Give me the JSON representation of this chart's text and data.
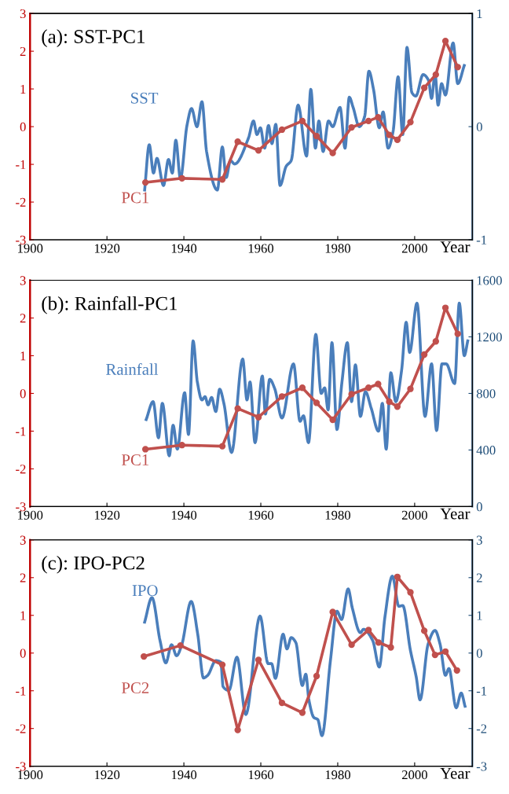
{
  "chart_data": [
    {
      "type": "line",
      "title": "(a): SST-PC1",
      "xlabel": "Year",
      "xlim": [
        1900,
        2015
      ],
      "xticks": [
        1900,
        1920,
        1940,
        1960,
        1980,
        2000
      ],
      "ylim": [
        -3,
        3
      ],
      "yticks": [
        -3,
        -2,
        -1,
        0,
        1,
        2,
        3
      ],
      "y2lim": [
        -1,
        1
      ],
      "y2ticks": [
        -1,
        0,
        1
      ],
      "series": [
        {
          "name": "PC1",
          "color": "#c0504d",
          "marker": "circle",
          "x": [
            1930,
            1939.5,
            1950,
            1954,
            1959.4,
            1965.5,
            1970.8,
            1974.5,
            1978.7,
            1983.6,
            1988,
            1990.5,
            1993.4,
            1995.5,
            1998.9,
            2002.5,
            2005.5,
            2008,
            2011.2
          ],
          "values": [
            -1.48,
            -1.37,
            -1.4,
            -0.4,
            -0.63,
            -0.08,
            0.15,
            -0.25,
            -0.7,
            -0.02,
            0.15,
            0.25,
            -0.22,
            -0.35,
            0.12,
            1.03,
            1.38,
            2.27,
            1.58
          ]
        },
        {
          "name": "SST",
          "color": "#4a7ebb",
          "marker": "none",
          "axis": "y2",
          "x": [
            1929.8,
            1931,
            1932.1,
            1933,
            1934.7,
            1936,
            1937,
            1937.9,
            1939.1,
            1940.8,
            1942,
            1943.4,
            1944.7,
            1945.9,
            1948.7,
            1950,
            1951,
            1952.1,
            1953.2,
            1956.8,
            1958.1,
            1959,
            1959.9,
            1961,
            1962,
            1962.9,
            1963.9,
            1965,
            1966.6,
            1967.9,
            1969.7,
            1971.9,
            1973,
            1974.2,
            1975.1,
            1976.2,
            1977.6,
            1978.7,
            1980.6,
            1981.9,
            1983,
            1984,
            1985.6,
            1987,
            1988.1,
            1989.3,
            1990.8,
            1991.8,
            1993.1,
            1994.4,
            1995.7,
            1996.9,
            1998,
            1999.3,
            2000.3,
            2002.2,
            2003.6,
            2004.4,
            2005.3,
            2006.1,
            2007,
            2008,
            2010,
            2011.2,
            2012.9
          ],
          "values": [
            -0.56,
            -0.16,
            -0.41,
            -0.28,
            -0.52,
            -0.29,
            -0.41,
            -0.12,
            -0.46,
            0.01,
            0.16,
            0.0,
            0.22,
            -0.22,
            -0.56,
            -0.18,
            -0.45,
            -0.3,
            -0.33,
            -0.1,
            0.05,
            -0.07,
            -0.01,
            -0.19,
            0.01,
            -0.15,
            0.02,
            -0.52,
            -0.35,
            -0.3,
            0.19,
            -0.26,
            0.33,
            -0.19,
            0.05,
            -0.22,
            0.05,
            0.0,
            0.17,
            -0.19,
            0.26,
            0.17,
            0.0,
            0.09,
            0.49,
            0.33,
            -0.01,
            0.13,
            -0.19,
            -0.04,
            0.44,
            -0.07,
            0.7,
            0.3,
            0.27,
            0.46,
            0.41,
            0.25,
            0.47,
            0.19,
            0.38,
            0.28,
            0.74,
            0.38,
            0.54
          ]
        }
      ]
    },
    {
      "type": "line",
      "title": "(b): Rainfall-PC1",
      "xlabel": "Year",
      "xlim": [
        1900,
        2015
      ],
      "xticks": [
        1900,
        1920,
        1940,
        1960,
        1980,
        2000
      ],
      "ylim": [
        -3,
        3
      ],
      "yticks": [
        -3,
        -2,
        -1,
        0,
        1,
        2,
        3
      ],
      "y2lim": [
        0,
        1600
      ],
      "y2ticks": [
        0,
        400,
        800,
        1200,
        1600
      ],
      "series": [
        {
          "name": "PC1",
          "color": "#c0504d",
          "marker": "circle",
          "x": [
            1930,
            1939.5,
            1950,
            1954,
            1959.4,
            1965.5,
            1970.8,
            1974.5,
            1978.7,
            1983.6,
            1988,
            1990.5,
            1993.4,
            1995.5,
            1998.9,
            2002.5,
            2005.5,
            2008,
            2011.2
          ],
          "values": [
            -1.48,
            -1.37,
            -1.4,
            -0.4,
            -0.63,
            -0.08,
            0.15,
            -0.25,
            -0.7,
            -0.02,
            0.15,
            0.25,
            -0.22,
            -0.35,
            0.12,
            1.03,
            1.38,
            2.27,
            1.58
          ]
        },
        {
          "name": "Rainfall",
          "color": "#4a7ebb",
          "marker": "none",
          "axis": "y2",
          "x": [
            1930.2,
            1932,
            1933.4,
            1934.4,
            1936.2,
            1937.2,
            1938.3,
            1940.2,
            1941.2,
            1942.4,
            1943.5,
            1944.7,
            1945.5,
            1946.3,
            1947.2,
            1948.3,
            1949.3,
            1950.4,
            1952.4,
            1955.3,
            1956.4,
            1957.2,
            1958.5,
            1960.4,
            1961.2,
            1962.3,
            1963.6,
            1965.5,
            1968.5,
            1970.2,
            1971.1,
            1972.4,
            1974.3,
            1975.7,
            1976.6,
            1977.5,
            1978.5,
            1979.8,
            1981.1,
            1982.5,
            1983.6,
            1984.6,
            1985.9,
            1987.2,
            1988.7,
            1990.6,
            1991.6,
            1992.6,
            1993.8,
            1995.1,
            1996.6,
            1997.8,
            1998.7,
            2000.6,
            2002.7,
            2004.4,
            2005.7,
            2007.1,
            2008.2,
            2010.4,
            2011.6,
            2012.9,
            2013.8
          ],
          "values": [
            615,
            742,
            487,
            730,
            359,
            575,
            406,
            805,
            510,
            1171,
            881,
            754,
            777,
            719,
            772,
            672,
            830,
            730,
            383,
            1043,
            754,
            881,
            452,
            923,
            654,
            900,
            835,
            626,
            1009,
            603,
            642,
            452,
            1217,
            800,
            839,
            684,
            1159,
            545,
            881,
            1159,
            742,
            1002,
            638,
            812,
            696,
            533,
            730,
            406,
            946,
            742,
            962,
            1303,
            1090,
            1438,
            638,
            1009,
            538,
            1009,
            1009,
            870,
            1438,
            1067,
            1171
          ]
        }
      ]
    },
    {
      "type": "line",
      "title": "(c): IPO-PC2",
      "xlabel": "Year",
      "xlim": [
        1900,
        2015
      ],
      "xticks": [
        1900,
        1920,
        1940,
        1960,
        1980,
        2000
      ],
      "ylim": [
        -3,
        3
      ],
      "yticks": [
        -3,
        -2,
        -1,
        0,
        1,
        2,
        3
      ],
      "y2lim": [
        -3,
        3
      ],
      "y2ticks": [
        -3,
        -2,
        -1,
        0,
        1,
        2,
        3
      ],
      "series": [
        {
          "name": "PC2",
          "color": "#c0504d",
          "marker": "circle",
          "x": [
            1929.6,
            1939.1,
            1950,
            1954,
            1959.4,
            1965.5,
            1970.8,
            1974.5,
            1978.7,
            1983.6,
            1988,
            1990.6,
            1993.8,
            1995.5,
            1998.9,
            2002.5,
            2005.3,
            2008,
            2011
          ],
          "values": [
            -0.09,
            0.2,
            -0.31,
            -2.04,
            -0.18,
            -1.32,
            -1.58,
            -0.61,
            1.09,
            0.22,
            0.61,
            0.28,
            0.15,
            2.02,
            1.61,
            0.59,
            -0.05,
            0.04,
            -0.46
          ]
        },
        {
          "name": "IPO",
          "color": "#4a7ebb",
          "marker": "none",
          "axis": "y2",
          "x": [
            1929.8,
            1931.7,
            1933.8,
            1935.3,
            1936.8,
            1938.1,
            1939.4,
            1941.9,
            1943.6,
            1945.1,
            1946.2,
            1948.3,
            1949.6,
            1950.2,
            1951.7,
            1953.8,
            1956.1,
            1959.8,
            1961.9,
            1962.8,
            1963.8,
            1965.8,
            1966.8,
            1967.9,
            1969.1,
            1970.8,
            1971.7,
            1972.5,
            1973.8,
            1974.8,
            1975.9,
            1978.1,
            1979.8,
            1981,
            1982.7,
            1983.8,
            1985.9,
            1986.7,
            1989.1,
            1990.8,
            1992.3,
            1994.2,
            1995.9,
            1996.9,
            1998.9,
            2000.4,
            2001.4,
            2003.5,
            2005.3,
            2006.6,
            2008,
            2008.9,
            2010.8,
            2012.1,
            2013.1
          ],
          "values": [
            0.82,
            1.47,
            0.33,
            -0.26,
            0.22,
            -0.07,
            0.2,
            1.37,
            0.5,
            -0.66,
            -0.59,
            -0.2,
            -0.24,
            -0.89,
            -0.99,
            -0.11,
            -1.63,
            0.98,
            -0.28,
            -0.28,
            -0.67,
            0.5,
            0.11,
            0.41,
            0.28,
            -0.86,
            -0.56,
            -1.24,
            -1.71,
            -1.76,
            -2.19,
            -0.2,
            1.11,
            0.89,
            1.7,
            1.19,
            0.54,
            0.63,
            0.33,
            -0.37,
            0.98,
            2.04,
            1.24,
            1.26,
            0.07,
            -0.63,
            -1.24,
            0.24,
            0.6,
            0.24,
            -0.59,
            -0.41,
            -1.45,
            -1.06,
            -1.41
          ]
        }
      ]
    }
  ]
}
